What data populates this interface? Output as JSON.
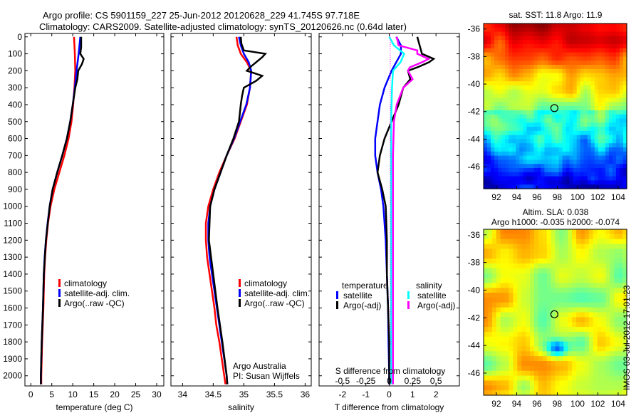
{
  "title": {
    "line1": "Argo profile: CS 5901159_227 25-Jun-2012 20120628_229 41.745S 97.718E",
    "line2": "Climatology: CARS2009. Satellite-adjusted climatology: synTS_20120626.nc (0.64d later)"
  },
  "colors": {
    "climatology": "#ff0000",
    "satellite": "#0000ff",
    "argo": "#000000",
    "sal_satellite": "#00ffff",
    "sal_argo": "#ff00ff"
  },
  "chart_data": [
    {
      "type": "line",
      "name": "temperature",
      "xlabel": "temperature (deg C)",
      "ylabel": "",
      "xlim": [
        -1.4,
        31.7
      ],
      "ylim": [
        -20,
        2060
      ],
      "xticks": [
        0,
        5,
        10,
        15,
        20,
        25,
        30
      ],
      "yticks": [
        0,
        100,
        200,
        300,
        400,
        500,
        600,
        700,
        800,
        900,
        1000,
        1100,
        1200,
        1300,
        1400,
        1500,
        1600,
        1700,
        1800,
        1900,
        2000
      ],
      "legend": [
        "climatology",
        "satellite-adj. clim.",
        "Argo(..raw -QC)"
      ],
      "series": [
        {
          "name": "climatology",
          "color": "#ff0000",
          "depth": [
            0,
            100,
            200,
            300,
            400,
            500,
            600,
            700,
            800,
            900,
            1000,
            1100,
            1200,
            1300,
            1400,
            1600,
            1800,
            2000,
            2050
          ],
          "values": [
            10.3,
            10.5,
            10.6,
            10.4,
            10.1,
            9.7,
            9.0,
            8.0,
            6.8,
            5.6,
            4.7,
            4.1,
            3.7,
            3.4,
            3.2,
            3.0,
            2.7,
            2.5,
            2.5
          ]
        },
        {
          "name": "satellite-adj. clim.",
          "color": "#0000ff",
          "depth": [
            0,
            100,
            200,
            300,
            400,
            500,
            600,
            700,
            800,
            900,
            1000,
            1100,
            1200,
            1300,
            1400,
            1600,
            1800,
            2000,
            2050
          ],
          "values": [
            11.8,
            11.4,
            10.9,
            10.5,
            10.0,
            9.4,
            8.6,
            7.5,
            6.3,
            5.2,
            4.5,
            4.0,
            3.6,
            3.3,
            3.1,
            2.9,
            2.6,
            2.4,
            2.4
          ]
        },
        {
          "name": "Argo(..raw -QC)",
          "color": "#000000",
          "depth": [
            0,
            60,
            100,
            130,
            160,
            200,
            250,
            300,
            400,
            500,
            600,
            700,
            800,
            900,
            1000,
            1200,
            1400,
            1600,
            1800,
            2000,
            2050
          ],
          "values": [
            12.0,
            12.0,
            11.8,
            12.6,
            12.2,
            11.3,
            11.1,
            10.6,
            10.0,
            9.4,
            8.6,
            7.5,
            6.3,
            5.2,
            4.5,
            3.6,
            3.1,
            2.9,
            2.6,
            2.4,
            2.4
          ]
        }
      ],
      "annotations": []
    },
    {
      "type": "line",
      "name": "salinity",
      "xlabel": "salinity",
      "xlim": [
        33.81,
        36.1
      ],
      "ylim": [
        -20,
        2060
      ],
      "xticks": [
        34,
        34.5,
        35,
        35.5,
        36
      ],
      "legend": [
        "climatology",
        "satellite-adj. clim.",
        "Argo(..raw -QC)"
      ],
      "series": [
        {
          "name": "climatology",
          "color": "#ff0000",
          "depth": [
            0,
            50,
            100,
            150,
            200,
            300,
            400,
            500,
            600,
            700,
            800,
            900,
            1000,
            1100,
            1200,
            1300,
            1400,
            1500,
            1600,
            1700,
            1800,
            1900,
            2000,
            2050
          ],
          "values": [
            34.88,
            34.9,
            34.95,
            35.05,
            35.12,
            35.1,
            35.05,
            34.95,
            34.85,
            34.72,
            34.6,
            34.5,
            34.42,
            34.38,
            34.38,
            34.4,
            34.44,
            34.48,
            34.52,
            34.55,
            34.6,
            34.64,
            34.68,
            34.7
          ]
        },
        {
          "name": "satellite-adj. clim.",
          "color": "#0000ff",
          "depth": [
            0,
            50,
            100,
            150,
            200,
            300,
            400,
            500,
            600,
            700,
            800,
            900,
            1000,
            1100,
            1200,
            1300,
            1400,
            1500,
            1600,
            1700,
            1800,
            1900,
            2000,
            2050
          ],
          "values": [
            34.92,
            34.95,
            35.0,
            35.08,
            35.12,
            35.1,
            35.04,
            34.94,
            34.84,
            34.72,
            34.62,
            34.52,
            34.45,
            34.42,
            34.42,
            34.44,
            34.48,
            34.52,
            34.56,
            34.6,
            34.64,
            34.68,
            34.72,
            34.73
          ]
        },
        {
          "name": "Argo(..raw -QC)",
          "color": "#000000",
          "depth": [
            0,
            40,
            80,
            100,
            120,
            150,
            180,
            200,
            230,
            260,
            300,
            350,
            400,
            500,
            600,
            700,
            800,
            900,
            1000,
            1200,
            1400,
            1600,
            1800,
            2000,
            2050
          ],
          "values": [
            34.95,
            34.96,
            35.0,
            35.35,
            35.3,
            35.2,
            35.1,
            35.05,
            35.3,
            35.2,
            35.0,
            34.97,
            34.95,
            34.92,
            34.83,
            34.72,
            34.62,
            34.52,
            34.45,
            34.43,
            34.5,
            34.57,
            34.65,
            34.72,
            34.73
          ]
        }
      ],
      "annotations": [
        "Argo Australia",
        "PI: Susan Wijffels"
      ]
    },
    {
      "type": "line",
      "name": "difference",
      "xlabel": "T difference from climatology",
      "x2label": "S difference from climatology",
      "xlim": [
        -3,
        3
      ],
      "x2lim": [
        -0.75,
        0.75
      ],
      "ylim": [
        -20,
        2060
      ],
      "xticks": [
        -2,
        -1,
        0,
        1,
        2
      ],
      "x2ticks": [
        "-0.5",
        "-0.25",
        "0",
        "0.25",
        "0.5"
      ],
      "legend_groups": [
        {
          "title": "temperature",
          "items": [
            "satellite",
            "Argo(-adj)"
          ]
        },
        {
          "title": "salinity",
          "items": [
            "satellite",
            "Argo(-adj)"
          ]
        }
      ],
      "series": [
        {
          "name": "T satellite",
          "color": "#0000ff",
          "axis": "T",
          "depth": [
            0,
            50,
            100,
            150,
            200,
            300,
            400,
            500,
            600,
            700,
            800,
            900,
            1000,
            1200,
            1400,
            1600,
            1800,
            2000,
            2050
          ],
          "values": [
            0.3,
            0.5,
            0.5,
            0.3,
            0.1,
            -0.2,
            -0.4,
            -0.5,
            -0.6,
            -0.6,
            -0.5,
            -0.35,
            -0.25,
            -0.15,
            -0.1,
            -0.05,
            -0.03,
            0,
            0
          ]
        },
        {
          "name": "T Argo(-adj)",
          "color": "#000000",
          "axis": "T",
          "depth": [
            0,
            50,
            100,
            130,
            150,
            180,
            200,
            250,
            300,
            400,
            500,
            600,
            700,
            800,
            900,
            1000,
            1200,
            1400,
            1600,
            1800,
            2000,
            2050
          ],
          "values": [
            1.2,
            1.3,
            1.4,
            1.9,
            1.7,
            1.2,
            0.8,
            0.9,
            0.6,
            0.4,
            0.1,
            -0.2,
            -0.4,
            -0.5,
            -0.3,
            -0.15,
            -0.1,
            -0.1,
            -0.05,
            0,
            0,
            0
          ]
        },
        {
          "name": "S satellite",
          "color": "#00ffff",
          "axis": "S",
          "depth": [
            0,
            50,
            100,
            150,
            200,
            300,
            500,
            700,
            1000,
            1500,
            2050
          ],
          "values": [
            0.0,
            0.05,
            0.16,
            0.12,
            0.04,
            0.03,
            0.02,
            0.02,
            0.02,
            0.02,
            0.02
          ]
        },
        {
          "name": "S Argo(-adj)",
          "color": "#ff00ff",
          "axis": "S",
          "depth": [
            0,
            50,
            80,
            100,
            130,
            150,
            180,
            200,
            250,
            300,
            400,
            500,
            700,
            1000,
            1500,
            2050
          ],
          "values": [
            0.08,
            0.1,
            0.3,
            0.3,
            0.42,
            0.35,
            0.22,
            0.2,
            0.25,
            0.15,
            0.08,
            0.05,
            0.04,
            0.04,
            0.04,
            0.04
          ]
        }
      ]
    },
    {
      "type": "heatmap",
      "name": "sst-map",
      "title": "sat. SST: 11.8 Argo: 11.9",
      "xlim": [
        90.74,
        104.85
      ],
      "ylim": [
        -47.6,
        -35.6
      ],
      "xticks": [
        92,
        94,
        96,
        98,
        100,
        102,
        104
      ],
      "yticks": [
        -36,
        -38,
        -40,
        -42,
        -44,
        -46
      ],
      "marker": {
        "lon": 97.718,
        "lat": -41.745
      }
    },
    {
      "type": "heatmap",
      "name": "sla-map",
      "title": "Altim. SLA: 0.038",
      "subtitle": "Argo h1000: -0.035 h2000: -0.074",
      "xlim": [
        90.74,
        104.85
      ],
      "ylim": [
        -47.6,
        -35.6
      ],
      "xticks": [
        92,
        94,
        96,
        98,
        100,
        102,
        104
      ],
      "yticks": [
        -36,
        -38,
        -40,
        -42,
        -44,
        -46
      ],
      "marker": {
        "lon": 97.718,
        "lat": -41.745
      }
    }
  ],
  "footer": {
    "stamp": "IMOS 03-Jul-2012 17:01:23"
  }
}
